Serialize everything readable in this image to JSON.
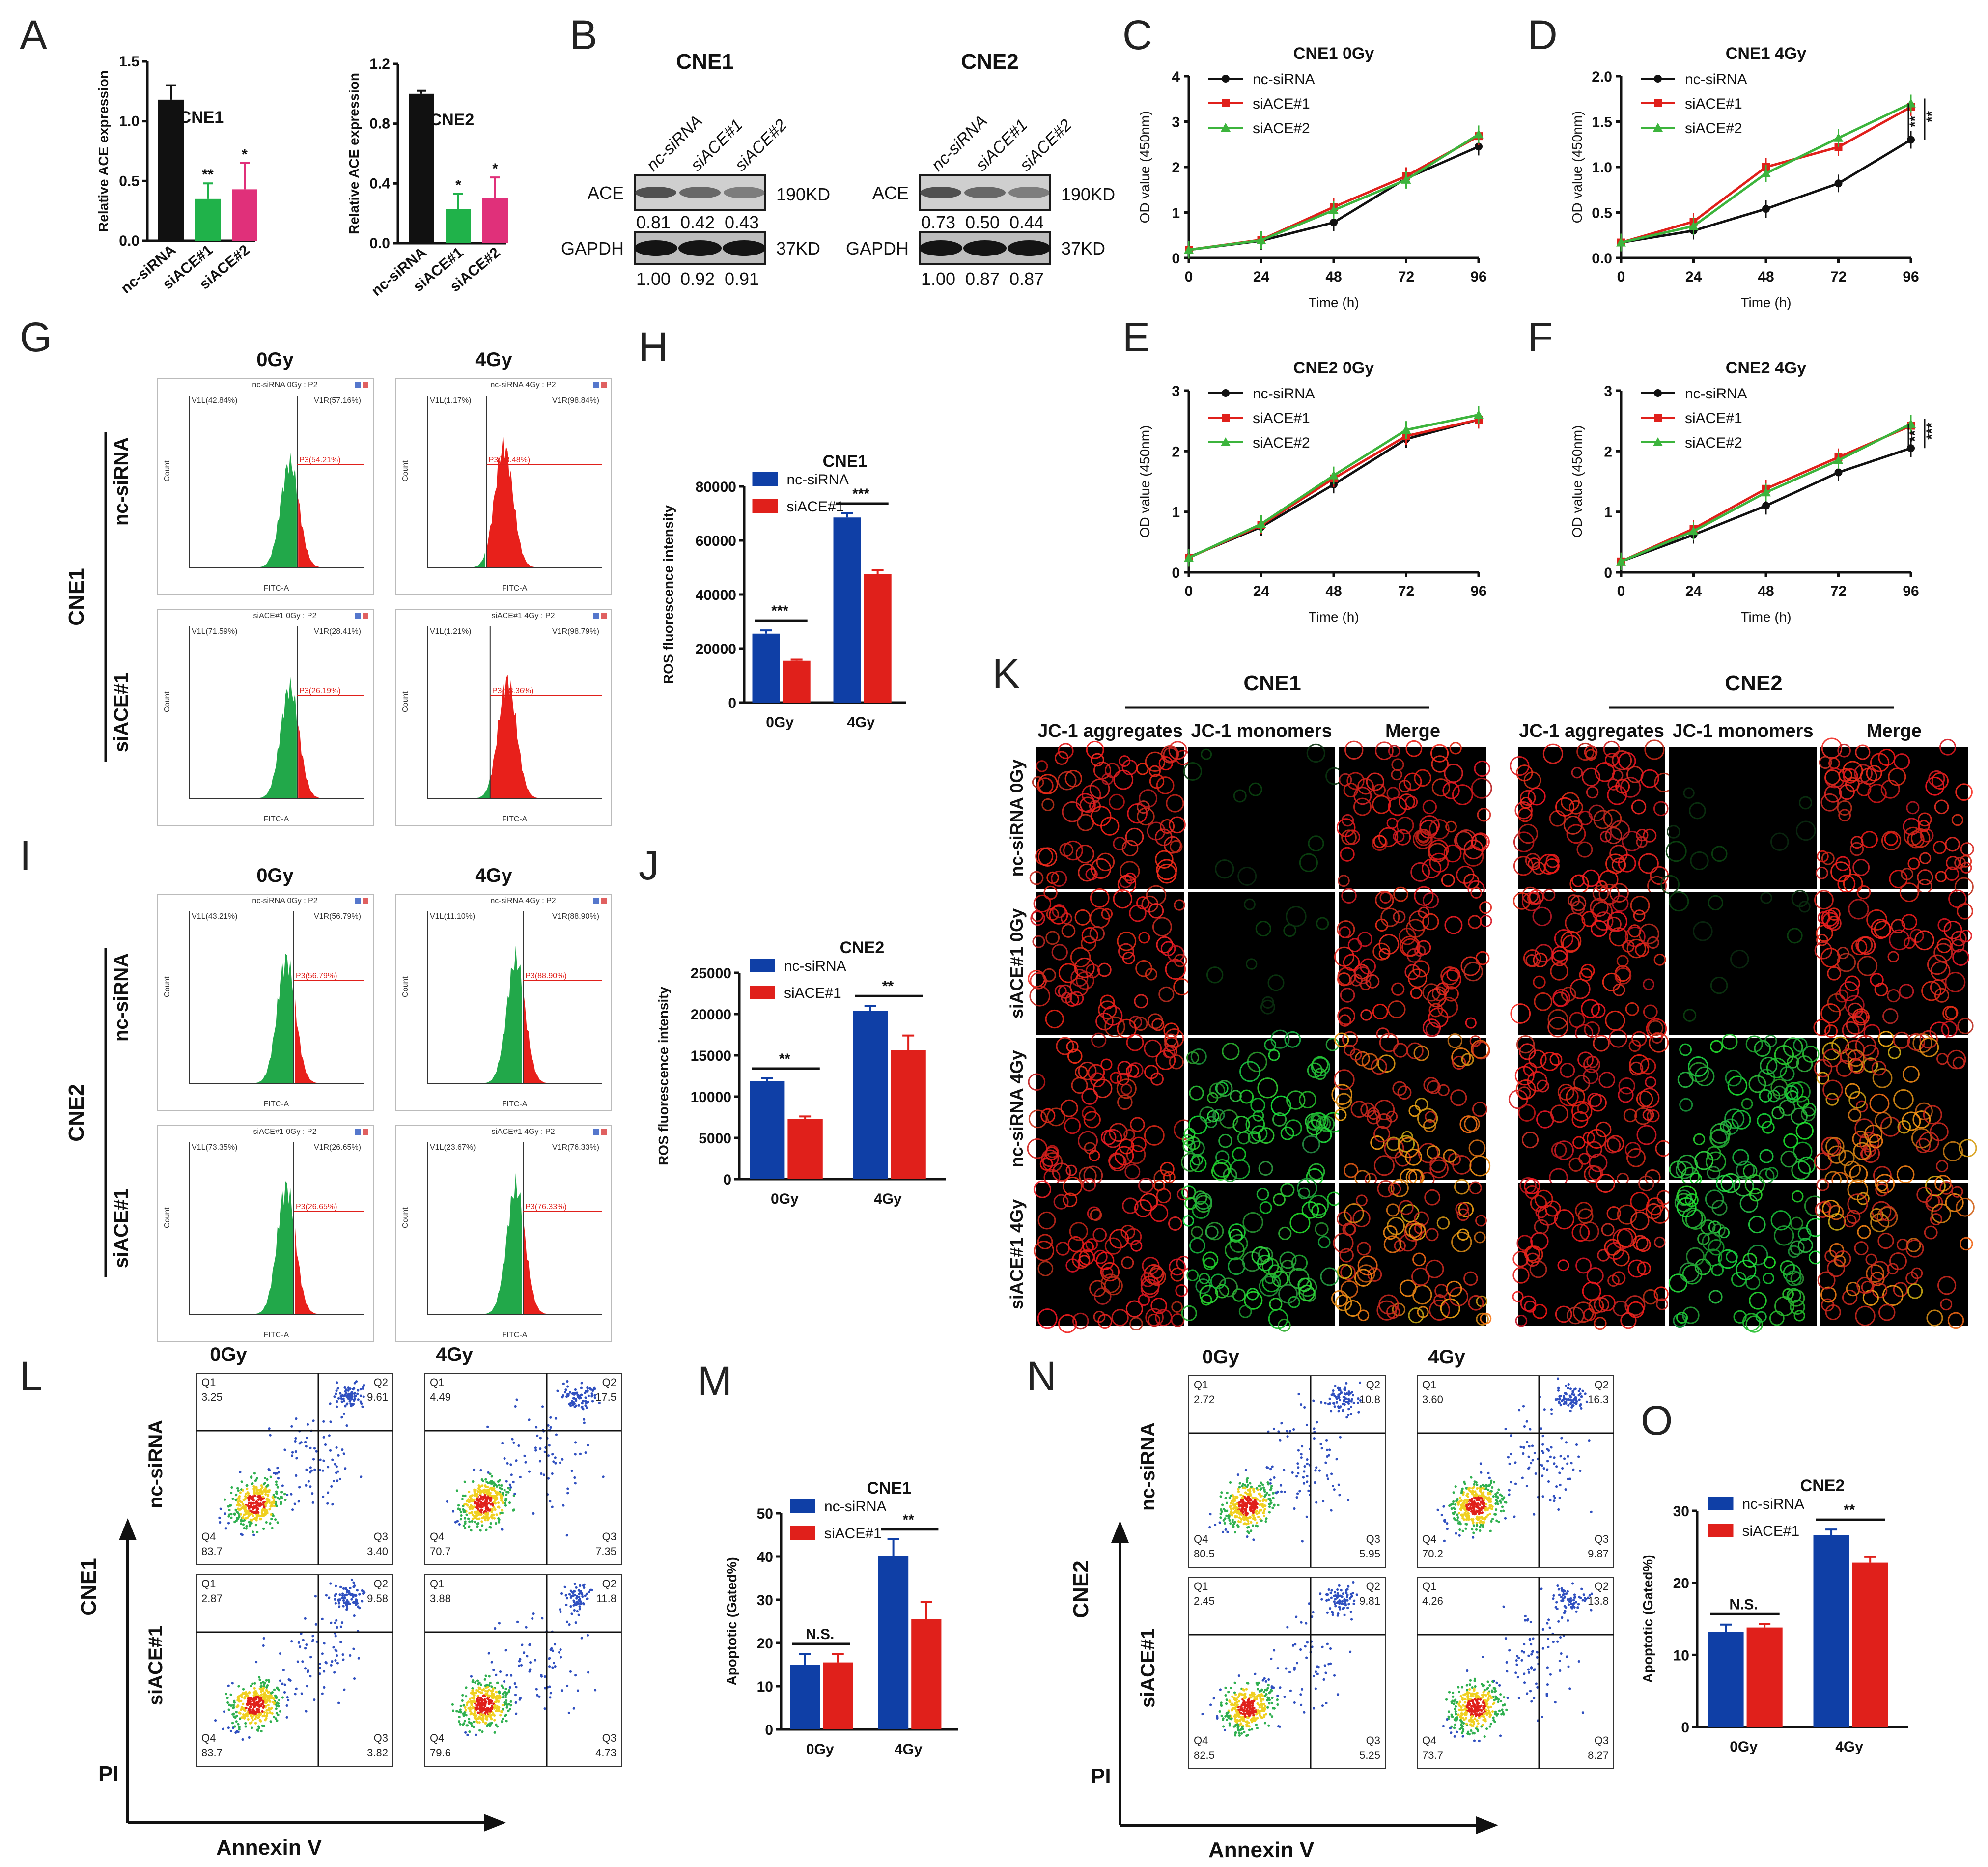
{
  "panel_letters": [
    "A",
    "B",
    "C",
    "D",
    "E",
    "F",
    "G",
    "H",
    "I",
    "J",
    "K",
    "L",
    "M",
    "N",
    "O"
  ],
  "colors": {
    "black": "#111111",
    "green": "#20b24a",
    "magenta": "#e0307a",
    "blue": "#0f3fa6",
    "red": "#e0201b",
    "green_line": "#3cb43c",
    "red_line": "#e0201b"
  },
  "panelA": {
    "charts": [
      {
        "title": "CNE1",
        "ylabel": "Relative ACE expression",
        "ylim": [
          0,
          1.5
        ],
        "yticks": [
          "0.0",
          "0.5",
          "1.0",
          "1.5"
        ],
        "ytick_values": [
          0,
          0.5,
          1.0,
          1.5
        ],
        "categories": [
          "nc-siRNA",
          "siACE#1",
          "siACE#2"
        ],
        "values": [
          1.18,
          0.35,
          0.43
        ],
        "errors": [
          0.12,
          0.13,
          0.22
        ],
        "sig": [
          "",
          "**",
          "*"
        ]
      },
      {
        "title": "CNE2",
        "ylabel": "Relative ACE expression",
        "ylim": [
          0,
          1.2
        ],
        "yticks": [
          "0.0",
          "0.4",
          "0.8",
          "1.2"
        ],
        "ytick_values": [
          0,
          0.4,
          0.8,
          1.2
        ],
        "categories": [
          "nc-siRNA",
          "siACE#1",
          "siACE#2"
        ],
        "values": [
          1.0,
          0.23,
          0.3
        ],
        "errors": [
          0.02,
          0.1,
          0.14
        ],
        "sig": [
          "",
          "*",
          "*"
        ]
      }
    ]
  },
  "panelB": {
    "blots": [
      {
        "title": "CNE1",
        "lanes": [
          "nc-siRNA",
          "siACE#1",
          "siACE#2"
        ],
        "rows": [
          "ACE",
          "GAPDH"
        ],
        "sizes": [
          "190KD",
          "37KD"
        ],
        "ace_vals": [
          "0.81",
          "0.42",
          "0.43"
        ],
        "gapdh_vals": [
          "1.00",
          "0.92",
          "0.91"
        ]
      },
      {
        "title": "CNE2",
        "lanes": [
          "nc-siRNA",
          "siACE#1",
          "siACE#2"
        ],
        "rows": [
          "ACE",
          "GAPDH"
        ],
        "sizes": [
          "190KD",
          "37KD"
        ],
        "ace_vals": [
          "0.73",
          "0.50",
          "0.44"
        ],
        "gapdh_vals": [
          "1.00",
          "0.87",
          "0.87"
        ]
      }
    ]
  },
  "chart_data": [
    {
      "panel": "C",
      "type": "line",
      "title": "CNE1 0Gy",
      "xlabel": "Time (h)",
      "ylabel": "OD value (450nm)",
      "x": [
        0,
        24,
        48,
        72,
        96
      ],
      "ylim": [
        0,
        4
      ],
      "yticks": [
        "0",
        "1",
        "2",
        "3",
        "4"
      ],
      "series": [
        {
          "name": "nc-siRNA",
          "values": [
            0.18,
            0.38,
            0.78,
            1.75,
            2.45
          ]
        },
        {
          "name": "siACE#1",
          "values": [
            0.18,
            0.4,
            1.12,
            1.8,
            2.68
          ]
        },
        {
          "name": "siACE#2",
          "values": [
            0.18,
            0.39,
            1.05,
            1.72,
            2.72
          ]
        }
      ],
      "sig": []
    },
    {
      "panel": "D",
      "type": "line",
      "title": "CNE1 4Gy",
      "xlabel": "Time (h)",
      "ylabel": "OD value (450nm)",
      "x": [
        0,
        24,
        48,
        72,
        96
      ],
      "ylim": [
        0,
        2
      ],
      "yticks": [
        "0.0",
        "0.5",
        "1.0",
        "1.5",
        "2.0"
      ],
      "series": [
        {
          "name": "nc-siRNA",
          "values": [
            0.17,
            0.3,
            0.54,
            0.82,
            1.3
          ]
        },
        {
          "name": "siACE#1",
          "values": [
            0.17,
            0.4,
            1.0,
            1.22,
            1.66
          ]
        },
        {
          "name": "siACE#2",
          "values": [
            0.17,
            0.35,
            0.93,
            1.32,
            1.7
          ]
        }
      ],
      "sig": [
        "**",
        "**"
      ]
    },
    {
      "panel": "E",
      "type": "line",
      "title": "CNE2 0Gy",
      "xlabel": "Time (h)",
      "ylabel": "OD value (450nm)",
      "x": [
        0,
        24,
        48,
        72,
        96
      ],
      "ylim": [
        0,
        3
      ],
      "yticks": [
        "0",
        "1",
        "2",
        "3"
      ],
      "series": [
        {
          "name": "nc-siRNA",
          "values": [
            0.25,
            0.75,
            1.45,
            2.2,
            2.52
          ]
        },
        {
          "name": "siACE#1",
          "values": [
            0.24,
            0.78,
            1.55,
            2.25,
            2.52
          ]
        },
        {
          "name": "siACE#2",
          "values": [
            0.24,
            0.8,
            1.6,
            2.35,
            2.6
          ]
        }
      ],
      "sig": []
    },
    {
      "panel": "F",
      "type": "line",
      "title": "CNE2 4Gy",
      "xlabel": "Time (h)",
      "ylabel": "OD value (450nm)",
      "x": [
        0,
        24,
        48,
        72,
        96
      ],
      "ylim": [
        0,
        3
      ],
      "yticks": [
        "0",
        "1",
        "2",
        "3"
      ],
      "series": [
        {
          "name": "nc-siRNA",
          "values": [
            0.18,
            0.62,
            1.1,
            1.65,
            2.05
          ]
        },
        {
          "name": "siACE#1",
          "values": [
            0.18,
            0.72,
            1.38,
            1.9,
            2.42
          ]
        },
        {
          "name": "siACE#2",
          "values": [
            0.18,
            0.68,
            1.32,
            1.85,
            2.45
          ]
        }
      ],
      "sig": [
        "**",
        "***"
      ]
    },
    {
      "panel": "H",
      "type": "bar",
      "title": "CNE1",
      "ylabel": "ROS fluorescence intensity",
      "categories": [
        "0Gy",
        "4Gy"
      ],
      "ylim": [
        0,
        80000
      ],
      "yticks": [
        "0",
        "20000",
        "40000",
        "60000",
        "80000"
      ],
      "series": [
        {
          "name": "nc-siRNA",
          "values": [
            25500,
            68500
          ],
          "errors": [
            1200,
            1500
          ]
        },
        {
          "name": "siACE#1",
          "values": [
            15500,
            47500
          ],
          "errors": [
            400,
            1500
          ]
        }
      ],
      "sig": [
        "***",
        "***"
      ]
    },
    {
      "panel": "J",
      "type": "bar",
      "title": "CNE2",
      "ylabel": "ROS fluorescence intensity",
      "categories": [
        "0Gy",
        "4Gy"
      ],
      "ylim": [
        0,
        25000
      ],
      "yticks": [
        "0",
        "5000",
        "10000",
        "15000",
        "20000",
        "25000"
      ],
      "series": [
        {
          "name": "nc-siRNA",
          "values": [
            11900,
            20400
          ],
          "errors": [
            300,
            600
          ]
        },
        {
          "name": "siACE#1",
          "values": [
            7300,
            15600
          ],
          "errors": [
            300,
            1800
          ]
        }
      ],
      "sig": [
        "**",
        "**"
      ]
    },
    {
      "panel": "M",
      "type": "bar",
      "title": "CNE1",
      "ylabel": "Apoptotic (Gated%)",
      "categories": [
        "0Gy",
        "4Gy"
      ],
      "ylim": [
        0,
        50
      ],
      "yticks": [
        "0",
        "10",
        "20",
        "30",
        "40",
        "50"
      ],
      "series": [
        {
          "name": "nc-siRNA",
          "values": [
            15,
            40
          ],
          "errors": [
            2.5,
            4
          ]
        },
        {
          "name": "siACE#1",
          "values": [
            15.5,
            25.5
          ],
          "errors": [
            2,
            4
          ]
        }
      ],
      "sig": [
        "N.S.",
        "**"
      ]
    },
    {
      "panel": "O",
      "type": "bar",
      "title": "CNE2",
      "ylabel": "Apoptotic (Gated%)",
      "categories": [
        "0Gy",
        "4Gy"
      ],
      "ylim": [
        0,
        30
      ],
      "yticks": [
        "0",
        "10",
        "20",
        "30"
      ],
      "series": [
        {
          "name": "nc-siRNA",
          "values": [
            13.2,
            26.6
          ],
          "errors": [
            1,
            0.8
          ]
        },
        {
          "name": "siACE#1",
          "values": [
            13.8,
            22.8
          ],
          "errors": [
            0.5,
            0.8
          ]
        }
      ],
      "sig": [
        "N.S.",
        "**"
      ]
    }
  ],
  "panelG": {
    "cols": [
      "0Gy",
      "4Gy"
    ],
    "rows": [
      "nc-siRNA",
      "siACE#1"
    ],
    "group": "CNE1",
    "plots": [
      {
        "title": "nc-siRNA 0Gy : P2",
        "v1l": "V1L(42.84%)",
        "v1r": "V1R(57.16%)",
        "p3": "P3(54.21%)",
        "split": 0.62,
        "peak": 0.0,
        "height": 0.68
      },
      {
        "title": "nc-siRNA 4Gy : P2",
        "v1l": "V1L(1.17%)",
        "v1r": "V1R(98.84%)",
        "p3": "P3(98.48%)",
        "split": 0.34,
        "peak": 0.0,
        "height": 0.78
      },
      {
        "title": "siACE#1 0Gy : P2",
        "v1l": "V1L(71.59%)",
        "v1r": "V1R(28.41%)",
        "p3": "P3(26.19%)",
        "split": 0.62,
        "peak": 0.0,
        "height": 0.72
      },
      {
        "title": "siACE#1 4Gy : P2",
        "v1l": "V1L(1.21%)",
        "v1r": "V1R(98.79%)",
        "p3": "P3(98.36%)",
        "split": 0.36,
        "peak": 0.0,
        "height": 0.76
      }
    ],
    "yaxis": "Count",
    "xaxis": "FITC-A"
  },
  "panelI": {
    "cols": [
      "0Gy",
      "4Gy"
    ],
    "rows": [
      "nc-siRNA",
      "siACE#1"
    ],
    "group": "CNE2",
    "plots": [
      {
        "title": "nc-siRNA 0Gy : P2",
        "v1l": "V1L(43.21%)",
        "v1r": "V1R(56.79%)",
        "p3": "P3(56.79%)",
        "split": 0.6,
        "height": 0.8
      },
      {
        "title": "nc-siRNA 4Gy : P2",
        "v1l": "V1L(11.10%)",
        "v1r": "V1R(88.90%)",
        "p3": "P3(88.90%)",
        "split": 0.55,
        "height": 0.8
      },
      {
        "title": "siACE#1 0Gy : P2",
        "v1l": "V1L(73.35%)",
        "v1r": "V1R(26.65%)",
        "p3": "P3(26.65%)",
        "split": 0.6,
        "height": 0.82
      },
      {
        "title": "siACE#1 4Gy : P2",
        "v1l": "V1L(23.67%)",
        "v1r": "V1R(76.33%)",
        "p3": "P3(76.33%)",
        "split": 0.55,
        "height": 0.82
      }
    ],
    "yaxis": "Count",
    "xaxis": "FITC-A"
  },
  "panelK": {
    "groups": [
      "CNE1",
      "CNE2"
    ],
    "cols": [
      "JC-1 aggregates",
      "JC-1 monomers",
      "Merge"
    ],
    "rows": [
      "nc-siRNA 0Gy",
      "siACE#1 0Gy",
      "nc-siRNA 4Gy",
      "siACE#1 4Gy"
    ]
  },
  "panelL": {
    "cols": [
      "0Gy",
      "4Gy"
    ],
    "rows": [
      "nc-siRNA",
      "siACE#1"
    ],
    "group": "CNE1",
    "xaxis": "Annexin V",
    "yaxis": "PI",
    "plots": [
      {
        "q1": "3.25",
        "q2": "9.61",
        "q3": "3.40",
        "q4": "83.7"
      },
      {
        "q1": "4.49",
        "q2": "17.5",
        "q3": "7.35",
        "q4": "70.7"
      },
      {
        "q1": "2.87",
        "q2": "9.58",
        "q3": "3.82",
        "q4": "83.7"
      },
      {
        "q1": "3.88",
        "q2": "11.8",
        "q3": "4.73",
        "q4": "79.6"
      }
    ]
  },
  "panelN": {
    "cols": [
      "0Gy",
      "4Gy"
    ],
    "rows": [
      "nc-siRNA",
      "siACE#1"
    ],
    "group": "CNE2",
    "xaxis": "Annexin V",
    "yaxis": "PI",
    "plots": [
      {
        "q1": "2.72",
        "q2": "10.8",
        "q3": "5.95",
        "q4": "80.5"
      },
      {
        "q1": "3.60",
        "q2": "16.3",
        "q3": "9.87",
        "q4": "70.2"
      },
      {
        "q1": "2.45",
        "q2": "9.81",
        "q3": "5.25",
        "q4": "82.5"
      },
      {
        "q1": "4.26",
        "q2": "13.8",
        "q3": "8.27",
        "q4": "73.7"
      }
    ]
  },
  "quad_labels": [
    "Q1",
    "Q2",
    "Q3",
    "Q4"
  ]
}
